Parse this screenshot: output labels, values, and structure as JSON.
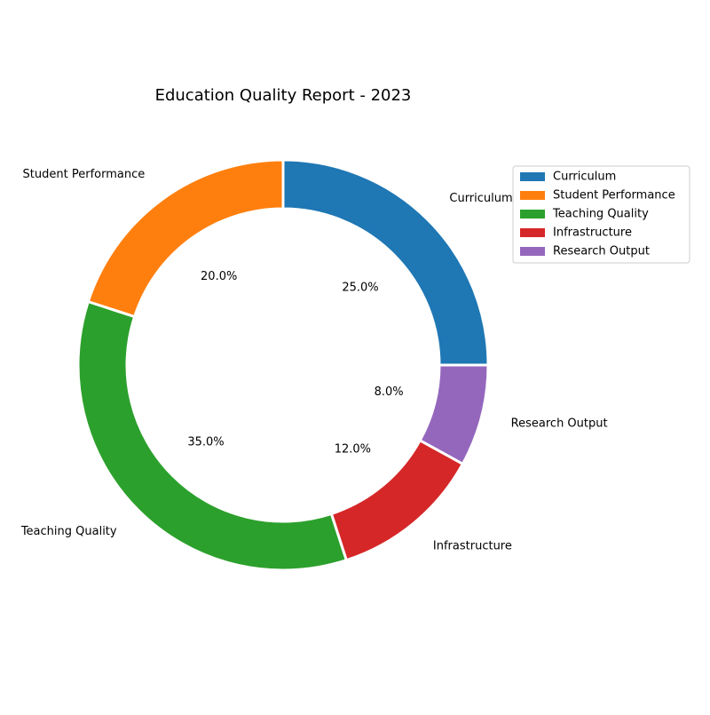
{
  "chart_data": {
    "type": "pie",
    "style": "donut",
    "title": "Education Quality Report - 2023",
    "categories": [
      "Curriculum",
      "Student Performance",
      "Teaching Quality",
      "Infrastructure",
      "Research Output"
    ],
    "values": [
      25.0,
      20.0,
      35.0,
      12.0,
      8.0
    ],
    "value_labels": [
      "25.0%",
      "20.0%",
      "35.0%",
      "12.0%",
      "8.0%"
    ],
    "colors": [
      "#1f77b4",
      "#ff7f0e",
      "#2ca02c",
      "#d62728",
      "#9467bd"
    ],
    "legend": {
      "placement": "right",
      "entries": [
        "Curriculum",
        "Student Performance",
        "Teaching Quality",
        "Infrastructure",
        "Research Output"
      ]
    }
  }
}
